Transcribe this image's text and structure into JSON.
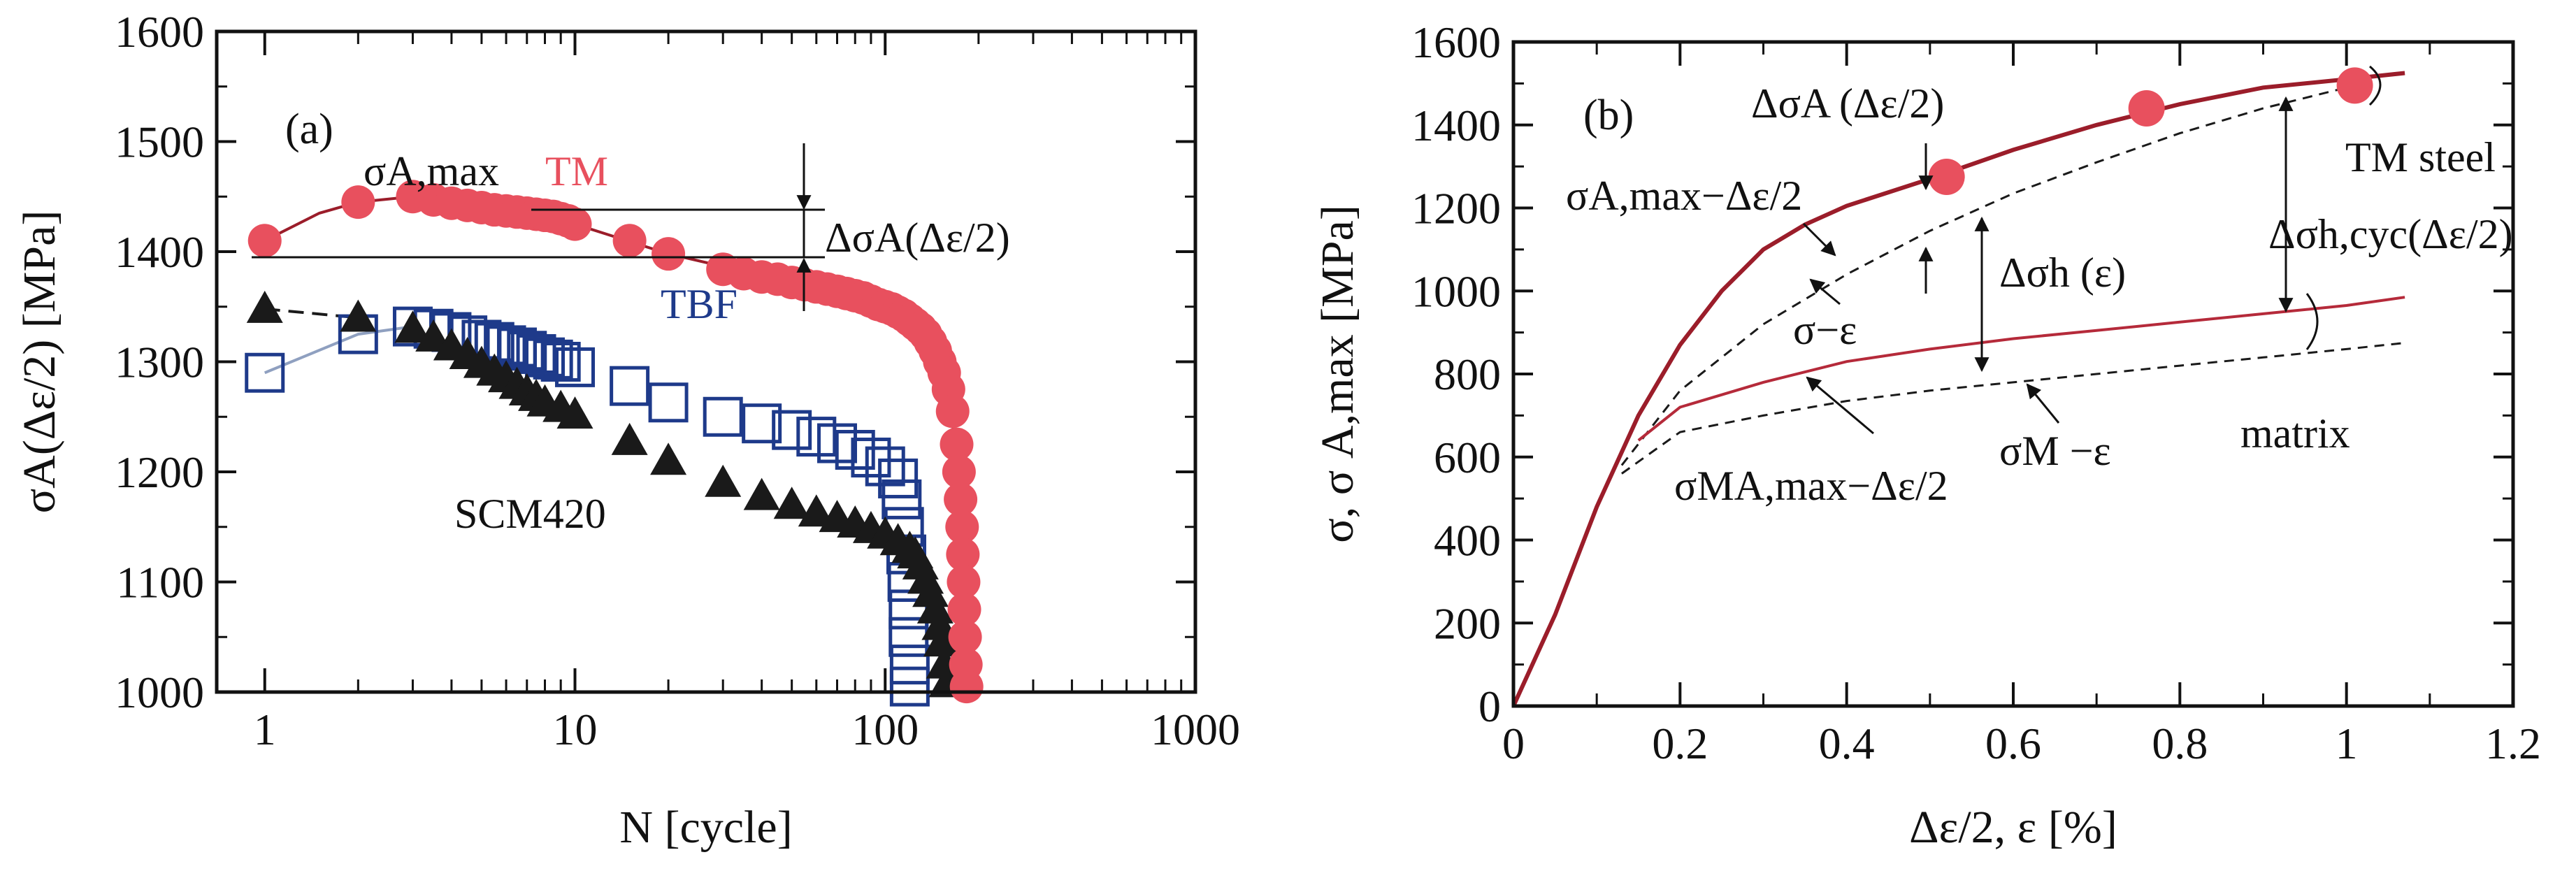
{
  "colors": {
    "tm": "#e8505e",
    "tm_curve": "#9b1d2a",
    "tbf": "#1e3a8a",
    "tbf_curve": "#8fa0c0",
    "scm": "#1a1a1a",
    "axis": "#111111"
  },
  "chart_data": [
    {
      "id": "a",
      "type": "scatter",
      "panel_label": "(a)",
      "xlabel": "N [cycle]",
      "ylabel": "σA(Δε/2) [MPa]",
      "xscale": "log",
      "xlim": [
        0.7,
        1000
      ],
      "ylim": [
        1000,
        1600
      ],
      "xticks": [
        1,
        10,
        100,
        1000
      ],
      "xtick_labels": [
        "1",
        "10",
        "100",
        "1000"
      ],
      "yticks": [
        1000,
        1100,
        1200,
        1300,
        1400,
        1500,
        1600
      ],
      "ytick_labels": [
        "1000",
        "1100",
        "1200",
        "1300",
        "1400",
        "1500",
        "1600"
      ],
      "series": [
        {
          "name": "TM",
          "marker": "circle",
          "points": [
            [
              1,
              1410
            ],
            [
              2,
              1445
            ],
            [
              3,
              1450
            ],
            [
              3.5,
              1447
            ],
            [
              4,
              1444
            ],
            [
              4.5,
              1442
            ],
            [
              5,
              1440
            ],
            [
              5.5,
              1438
            ],
            [
              6,
              1437
            ],
            [
              6.5,
              1436
            ],
            [
              7,
              1435
            ],
            [
              7.5,
              1434
            ],
            [
              8,
              1433
            ],
            [
              8.5,
              1432
            ],
            [
              9,
              1430
            ],
            [
              9.5,
              1428
            ],
            [
              10,
              1425
            ],
            [
              15,
              1410
            ],
            [
              20,
              1398
            ],
            [
              30,
              1384
            ],
            [
              35,
              1380
            ],
            [
              40,
              1377
            ],
            [
              45,
              1375
            ],
            [
              50,
              1372
            ],
            [
              55,
              1370
            ],
            [
              60,
              1368
            ],
            [
              65,
              1366
            ],
            [
              70,
              1364
            ],
            [
              75,
              1362
            ],
            [
              80,
              1360
            ],
            [
              85,
              1358
            ],
            [
              90,
              1355
            ],
            [
              95,
              1352
            ],
            [
              100,
              1350
            ],
            [
              105,
              1348
            ],
            [
              110,
              1345
            ],
            [
              115,
              1342
            ],
            [
              120,
              1338
            ],
            [
              125,
              1334
            ],
            [
              130,
              1330
            ],
            [
              135,
              1325
            ],
            [
              140,
              1318
            ],
            [
              145,
              1310
            ],
            [
              150,
              1300
            ],
            [
              155,
              1290
            ],
            [
              160,
              1275
            ],
            [
              165,
              1255
            ],
            [
              170,
              1225
            ],
            [
              173,
              1200
            ],
            [
              175,
              1175
            ],
            [
              177,
              1150
            ],
            [
              178,
              1125
            ],
            [
              179,
              1100
            ],
            [
              180,
              1075
            ],
            [
              181,
              1050
            ],
            [
              182,
              1025
            ],
            [
              183,
              1005
            ]
          ],
          "curve": [
            [
              1,
              1410
            ],
            [
              1.5,
              1435
            ],
            [
              2,
              1445
            ],
            [
              3,
              1450
            ],
            [
              5,
              1440
            ],
            [
              10,
              1425
            ],
            [
              20,
              1398
            ],
            [
              50,
              1372
            ],
            [
              100,
              1350
            ],
            [
              140,
              1318
            ],
            [
              160,
              1275
            ],
            [
              172,
              1200
            ],
            [
              178,
              1125
            ],
            [
              183,
              1005
            ]
          ]
        },
        {
          "name": "TBF",
          "marker": "open-square",
          "points": [
            [
              1,
              1290
            ],
            [
              2,
              1325
            ],
            [
              3,
              1332
            ],
            [
              3.5,
              1330
            ],
            [
              4,
              1327
            ],
            [
              4.5,
              1324
            ],
            [
              5,
              1320
            ],
            [
              5.5,
              1318
            ],
            [
              6,
              1315
            ],
            [
              6.5,
              1313
            ],
            [
              7,
              1310
            ],
            [
              7.5,
              1307
            ],
            [
              8,
              1304
            ],
            [
              8.5,
              1302
            ],
            [
              9,
              1300
            ],
            [
              10,
              1295
            ],
            [
              15,
              1278
            ],
            [
              20,
              1263
            ],
            [
              30,
              1250
            ],
            [
              40,
              1244
            ],
            [
              50,
              1238
            ],
            [
              60,
              1232
            ],
            [
              70,
              1226
            ],
            [
              80,
              1220
            ],
            [
              90,
              1213
            ],
            [
              100,
              1205
            ],
            [
              110,
              1194
            ],
            [
              113,
              1175
            ],
            [
              115,
              1150
            ],
            [
              117,
              1125
            ],
            [
              118,
              1100
            ],
            [
              119,
              1075
            ],
            [
              119,
              1050
            ],
            [
              120,
              1025
            ],
            [
              120,
              1005
            ]
          ],
          "curve": [
            [
              1,
              1290
            ],
            [
              2,
              1325
            ],
            [
              3,
              1332
            ]
          ]
        },
        {
          "name": "SCM420",
          "marker": "triangle",
          "points": [
            [
              1,
              1348
            ],
            [
              2,
              1340
            ],
            [
              3,
              1330
            ],
            [
              3.5,
              1322
            ],
            [
              4,
              1314
            ],
            [
              4.5,
              1306
            ],
            [
              5,
              1298
            ],
            [
              5.5,
              1291
            ],
            [
              6,
              1285
            ],
            [
              6.5,
              1279
            ],
            [
              7,
              1273
            ],
            [
              7.5,
              1268
            ],
            [
              8,
              1263
            ],
            [
              9,
              1258
            ],
            [
              10,
              1252
            ],
            [
              15,
              1228
            ],
            [
              20,
              1210
            ],
            [
              30,
              1190
            ],
            [
              40,
              1178
            ],
            [
              50,
              1170
            ],
            [
              60,
              1163
            ],
            [
              70,
              1158
            ],
            [
              80,
              1153
            ],
            [
              90,
              1148
            ],
            [
              100,
              1143
            ],
            [
              110,
              1137
            ],
            [
              120,
              1130
            ],
            [
              125,
              1125
            ],
            [
              130,
              1115
            ],
            [
              135,
              1102
            ],
            [
              140,
              1090
            ],
            [
              145,
              1075
            ],
            [
              150,
              1060
            ],
            [
              152,
              1045
            ],
            [
              155,
              1025
            ],
            [
              158,
              1008
            ]
          ],
          "curve": [
            [
              1,
              1348
            ],
            [
              2,
              1340
            ]
          ]
        }
      ],
      "annotations": {
        "sigma_amax": "σA,max",
        "delta_sigma_a": "ΔσA(Δε/2)",
        "tm_label": "TM",
        "tbf_label": "TBF",
        "scm_label": "SCM420"
      }
    },
    {
      "id": "b",
      "type": "line",
      "panel_label": "(b)",
      "xlabel": "Δε/2, ε [%]",
      "ylabel": "σ, σ A,max [MPa]",
      "xlim": [
        0,
        1.2
      ],
      "ylim": [
        0,
        1600
      ],
      "xticks": [
        0,
        0.2,
        0.4,
        0.6,
        0.8,
        1.0,
        1.2
      ],
      "xtick_labels": [
        "0",
        "0.2",
        "0.4",
        "0.6",
        "0.8",
        "1",
        "1.2"
      ],
      "yticks": [
        0,
        200,
        400,
        600,
        800,
        1000,
        1200,
        1400,
        1600
      ],
      "ytick_labels": [
        "0",
        "200",
        "400",
        "600",
        "800",
        "1000",
        "1200",
        "1400",
        "1600"
      ],
      "series": [
        {
          "name": "σA,max−Δε/2",
          "style": "solid",
          "points": [
            [
              0,
              0
            ],
            [
              0.05,
              220
            ],
            [
              0.1,
              480
            ],
            [
              0.15,
              700
            ],
            [
              0.2,
              870
            ],
            [
              0.25,
              1000
            ],
            [
              0.3,
              1100
            ],
            [
              0.35,
              1160
            ],
            [
              0.4,
              1205
            ],
            [
              0.5,
              1270
            ],
            [
              0.6,
              1340
            ],
            [
              0.7,
              1400
            ],
            [
              0.8,
              1450
            ],
            [
              0.9,
              1490
            ],
            [
              1.0,
              1510
            ],
            [
              1.07,
              1525
            ]
          ]
        },
        {
          "name": "σ−ε",
          "style": "dashed",
          "points": [
            [
              0.13,
              580
            ],
            [
              0.2,
              760
            ],
            [
              0.3,
              920
            ],
            [
              0.4,
              1040
            ],
            [
              0.5,
              1145
            ],
            [
              0.6,
              1235
            ],
            [
              0.7,
              1310
            ],
            [
              0.8,
              1380
            ],
            [
              0.9,
              1440
            ],
            [
              1.0,
              1490
            ]
          ]
        },
        {
          "name": "σMA,max−Δε/2",
          "style": "solid",
          "points": [
            [
              0.15,
              640
            ],
            [
              0.2,
              720
            ],
            [
              0.3,
              780
            ],
            [
              0.4,
              830
            ],
            [
              0.5,
              860
            ],
            [
              0.6,
              885
            ],
            [
              0.7,
              905
            ],
            [
              0.8,
              925
            ],
            [
              0.9,
              945
            ],
            [
              1.0,
              965
            ],
            [
              1.07,
              985
            ]
          ]
        },
        {
          "name": "σM−ε",
          "style": "dashed",
          "points": [
            [
              0.13,
              560
            ],
            [
              0.2,
              660
            ],
            [
              0.3,
              700
            ],
            [
              0.4,
              735
            ],
            [
              0.5,
              760
            ],
            [
              0.6,
              780
            ],
            [
              0.7,
              800
            ],
            [
              0.8,
              820
            ],
            [
              0.9,
              840
            ],
            [
              1.0,
              860
            ],
            [
              1.07,
              875
            ]
          ]
        },
        {
          "name": "TM markers",
          "style": "markers",
          "points": [
            [
              0.52,
              1275
            ],
            [
              0.76,
              1440
            ],
            [
              1.01,
              1495
            ]
          ]
        }
      ],
      "annotations": {
        "delta_sigma_a": "ΔσA (Δε/2)",
        "sigma_amax_curve": "σA,max−Δε/2",
        "sigma_eps": "σ−ε",
        "delta_sigma_h": "Δσh (ε)",
        "delta_sigma_hcyc": "Δσh,cyc(Δε/2)",
        "tm_steel": "TM steel",
        "matrix": "matrix",
        "sigma_m_amax": "σMA,max−Δε/2",
        "sigma_m_eps": "σM −ε"
      }
    }
  ]
}
